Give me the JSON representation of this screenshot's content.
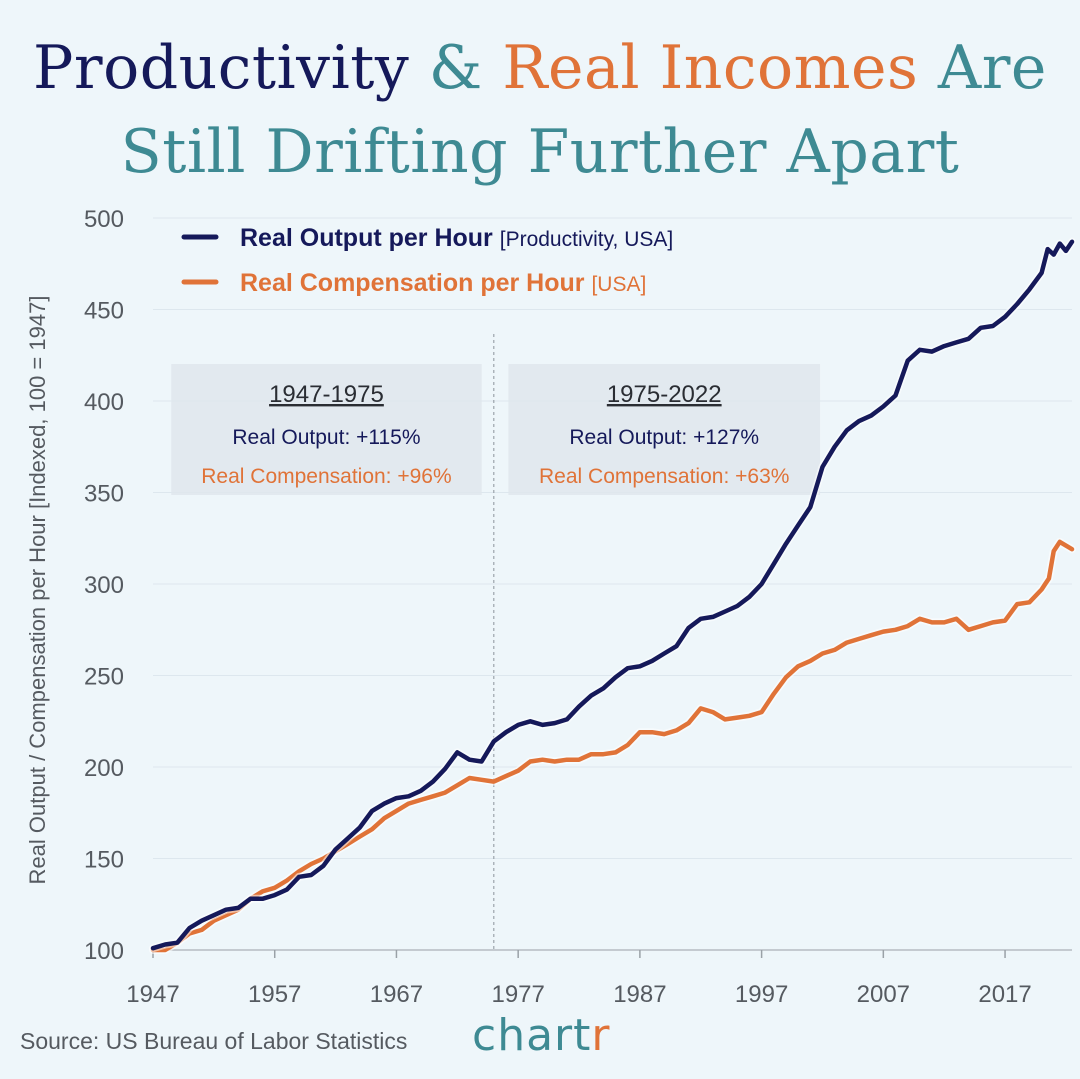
{
  "title": {
    "line1_part1": "Productivity",
    "line1_amp": "&",
    "line1_part2": "Real Incomes",
    "line1_part3": "Are",
    "line2": "Still Drifting Further Apart"
  },
  "colors": {
    "background": "#eef6fa",
    "productivity": "#15195a",
    "compensation": "#e07338",
    "teal": "#3e8a93",
    "annotation_box": "#dfe6ec",
    "axis_text": "#555a60"
  },
  "footer": {
    "source": "Source: US Bureau of Labor Statistics",
    "brand_main": "chart",
    "brand_accent": "r"
  },
  "chart_data": {
    "type": "line",
    "title": "Productivity & Real Incomes Are Still Drifting Further Apart",
    "xlabel": "",
    "ylabel": "Real Output / Compensation per Hour [Indexed, 100 = 1947]",
    "xlim": [
      1947,
      2022.5
    ],
    "ylim": [
      100,
      500
    ],
    "x_ticks": [
      1947,
      1957,
      1967,
      1977,
      1987,
      1997,
      2007,
      2017
    ],
    "y_ticks": [
      100,
      150,
      200,
      250,
      300,
      350,
      400,
      450,
      500
    ],
    "grid": "horizontal",
    "divider_year": 1975,
    "legend": {
      "placement": "top-left",
      "entries": [
        {
          "label": "Real Output per Hour",
          "note": "[Productivity, USA]"
        },
        {
          "label": "Real Compensation per Hour",
          "note": "[USA]"
        }
      ]
    },
    "annotations": [
      {
        "period": "1947-1975",
        "output_text": "Real Output: +115%",
        "comp_text": "Real Compensation: +96%",
        "x_start": 1948.5,
        "x_end": 1974
      },
      {
        "period": "1975-2022",
        "output_text": "Real Output: +127%",
        "comp_text": "Real Compensation: +63%",
        "x_start": 1976.2,
        "x_end": 2001.8
      }
    ],
    "series": [
      {
        "name": "Real Output per Hour",
        "x": [
          1947,
          1948,
          1949,
          1950,
          1951,
          1952,
          1953,
          1954,
          1955,
          1956,
          1957,
          1958,
          1959,
          1960,
          1961,
          1962,
          1963,
          1964,
          1965,
          1966,
          1967,
          1968,
          1969,
          1970,
          1971,
          1972,
          1973,
          1974,
          1975,
          1976,
          1977,
          1978,
          1979,
          1980,
          1981,
          1982,
          1983,
          1984,
          1985,
          1986,
          1987,
          1988,
          1989,
          1990,
          1991,
          1992,
          1993,
          1994,
          1995,
          1996,
          1997,
          1998,
          1999,
          2000,
          2001,
          2002,
          2003,
          2004,
          2005,
          2006,
          2007,
          2008,
          2009,
          2010,
          2011,
          2012,
          2013,
          2014,
          2015,
          2016,
          2017,
          2018,
          2019,
          2020,
          2020.5,
          2021,
          2021.5,
          2022,
          2022.5
        ],
        "values": [
          101,
          103,
          104,
          112,
          116,
          119,
          122,
          123,
          128,
          128,
          130,
          133,
          140,
          141,
          146,
          155,
          161,
          167,
          176,
          180,
          183,
          184,
          187,
          192,
          199,
          208,
          204,
          203,
          214,
          219,
          223,
          225,
          223,
          224,
          226,
          233,
          239,
          243,
          249,
          254,
          255,
          258,
          262,
          266,
          276,
          281,
          282,
          285,
          288,
          293,
          300,
          311,
          322,
          332,
          342,
          364,
          375,
          384,
          389,
          392,
          397,
          403,
          422,
          428,
          427,
          430,
          432,
          434,
          440,
          441,
          446,
          453,
          461,
          470,
          483,
          480,
          486,
          482,
          487
        ]
      },
      {
        "name": "Real Compensation per Hour",
        "x": [
          1947,
          1948,
          1949,
          1950,
          1951,
          1952,
          1953,
          1954,
          1955,
          1956,
          1957,
          1958,
          1959,
          1960,
          1961,
          1962,
          1963,
          1964,
          1965,
          1966,
          1967,
          1968,
          1969,
          1970,
          1971,
          1972,
          1973,
          1974,
          1975,
          1976,
          1977,
          1978,
          1979,
          1980,
          1981,
          1982,
          1983,
          1984,
          1985,
          1986,
          1987,
          1988,
          1989,
          1990,
          1991,
          1992,
          1993,
          1994,
          1995,
          1996,
          1997,
          1998,
          1999,
          2000,
          2001,
          2002,
          2003,
          2004,
          2005,
          2006,
          2007,
          2008,
          2009,
          2010,
          2011,
          2012,
          2013,
          2014,
          2015,
          2016,
          2017,
          2018,
          2019,
          2020,
          2020.3,
          2020.6,
          2021,
          2021.5,
          2022,
          2022.5
        ],
        "values": [
          100,
          100,
          104,
          109,
          111,
          116,
          119,
          122,
          128,
          132,
          134,
          138,
          143,
          147,
          150,
          154,
          158,
          162,
          166,
          172,
          176,
          180,
          182,
          184,
          186,
          190,
          194,
          193,
          192,
          195,
          198,
          203,
          204,
          203,
          204,
          204,
          207,
          207,
          208,
          212,
          219,
          219,
          218,
          220,
          224,
          232,
          230,
          226,
          227,
          228,
          230,
          240,
          249,
          255,
          258,
          262,
          264,
          268,
          270,
          272,
          274,
          275,
          277,
          281,
          279,
          279,
          281,
          275,
          277,
          279,
          280,
          289,
          290,
          297,
          300,
          303,
          318,
          323,
          321,
          319
        ]
      }
    ]
  }
}
